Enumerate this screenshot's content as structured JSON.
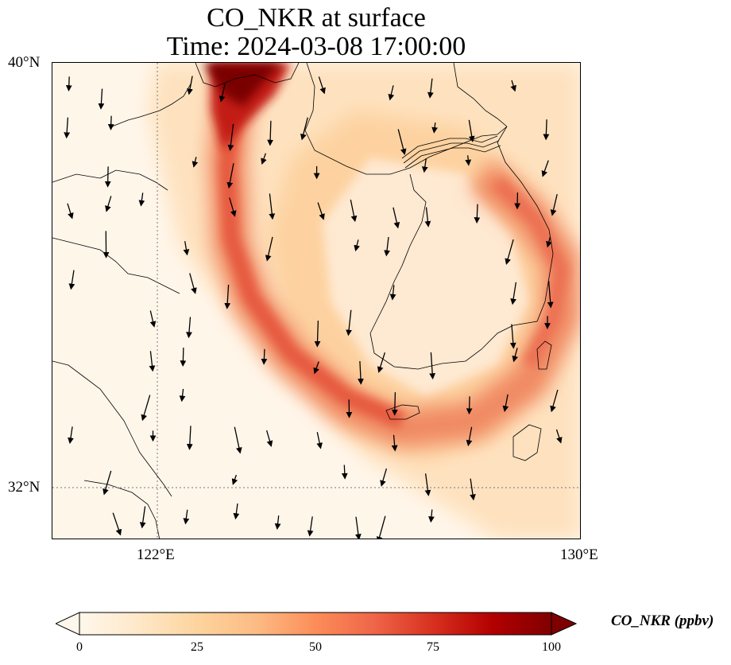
{
  "title": {
    "line1": "CO_NKR at surface",
    "line2": "Time: 2024-03-08 17:00:00"
  },
  "map": {
    "lon_range": [
      119.6,
      130
    ],
    "lat_range": [
      31,
      40
    ],
    "gridlines": {
      "lons": [
        122
      ],
      "lats": [
        32
      ],
      "style": "dotted"
    },
    "y_ticks": [
      {
        "value": 40,
        "label": "40°N"
      },
      {
        "value": 32,
        "label": "32°N"
      }
    ],
    "x_ticks": [
      {
        "value": 122,
        "label": "122°E"
      },
      {
        "value": 130,
        "label": "130°E"
      }
    ],
    "field_variable": "CO_NKR",
    "wind_vectors": "mostly southward arrows",
    "colormap": "OrRd"
  },
  "colorbar": {
    "label": "CO_NKR (ppbv)",
    "min": 0,
    "max": 100,
    "extend": "both",
    "ticks": [
      {
        "value": 0,
        "label": "0"
      },
      {
        "value": 25,
        "label": "25"
      },
      {
        "value": 50,
        "label": "50"
      },
      {
        "value": 75,
        "label": "75"
      },
      {
        "value": 100,
        "label": "100"
      }
    ],
    "colors": [
      "#fff7ec",
      "#fee8c8",
      "#fdd49e",
      "#fdbb84",
      "#fc8d59",
      "#ef6548",
      "#d7301f",
      "#b30000",
      "#7f0000"
    ]
  }
}
